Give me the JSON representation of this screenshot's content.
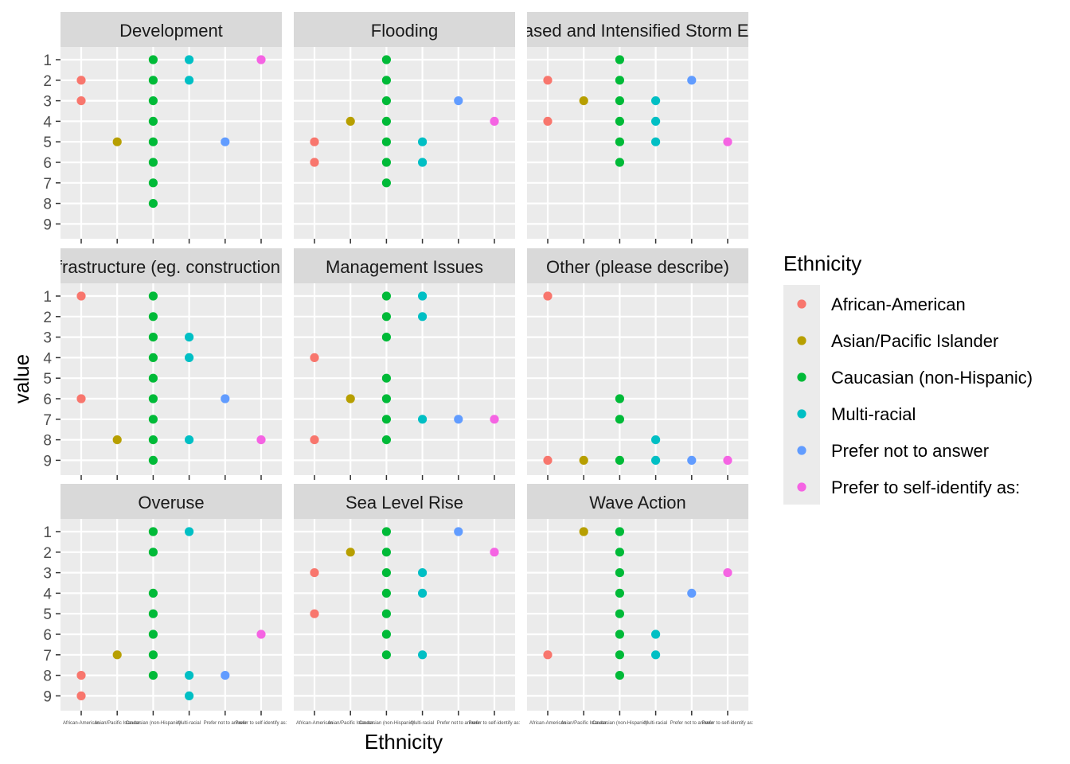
{
  "chart_data": {
    "type": "scatter",
    "facet_layout": "3x3 grid",
    "xlabel": "Ethnicity",
    "ylabel": "value",
    "y_ticks": [
      "1",
      "2",
      "3",
      "4",
      "5",
      "6",
      "7",
      "8",
      "9"
    ],
    "x_categories": [
      "African-American",
      "Asian/Pacific Islander",
      "Caucasian (non-Hispanic)",
      "Multi-racial",
      "Prefer not to answer",
      "Prefer to self-identify as:"
    ],
    "legend": {
      "title": "Ethnicity",
      "placement": "right",
      "entries": [
        {
          "label": "African-American",
          "color": "#F8766D"
        },
        {
          "label": "Asian/Pacific Islander",
          "color": "#B79F00"
        },
        {
          "label": "Caucasian (non-Hispanic)",
          "color": "#00BA38"
        },
        {
          "label": "Multi-racial",
          "color": "#00BFC4"
        },
        {
          "label": "Prefer not to answer",
          "color": "#619CFF"
        },
        {
          "label": "Prefer to self-identify as:",
          "color": "#F564E3"
        }
      ]
    },
    "facets": [
      {
        "title": "Development",
        "points": [
          [
            0,
            2
          ],
          [
            0,
            3
          ],
          [
            1,
            5
          ],
          [
            2,
            1
          ],
          [
            2,
            2
          ],
          [
            2,
            3
          ],
          [
            2,
            4
          ],
          [
            2,
            5
          ],
          [
            2,
            6
          ],
          [
            2,
            7
          ],
          [
            2,
            8
          ],
          [
            3,
            1
          ],
          [
            3,
            2
          ],
          [
            4,
            5
          ],
          [
            5,
            1
          ]
        ]
      },
      {
        "title": "Flooding",
        "points": [
          [
            0,
            5
          ],
          [
            0,
            6
          ],
          [
            1,
            4
          ],
          [
            2,
            1
          ],
          [
            2,
            2
          ],
          [
            2,
            3
          ],
          [
            2,
            4
          ],
          [
            2,
            5
          ],
          [
            2,
            6
          ],
          [
            2,
            7
          ],
          [
            3,
            5
          ],
          [
            3,
            6
          ],
          [
            4,
            3
          ],
          [
            5,
            4
          ]
        ]
      },
      {
        "title": "Increased and Intensified Storm Events",
        "points": [
          [
            0,
            2
          ],
          [
            0,
            4
          ],
          [
            1,
            3
          ],
          [
            2,
            1
          ],
          [
            2,
            2
          ],
          [
            2,
            3
          ],
          [
            2,
            4
          ],
          [
            2,
            5
          ],
          [
            2,
            6
          ],
          [
            3,
            3
          ],
          [
            3,
            4
          ],
          [
            3,
            5
          ],
          [
            4,
            2
          ],
          [
            5,
            5
          ]
        ]
      },
      {
        "title": "Infrastructure (eg. construction of",
        "points": [
          [
            0,
            1
          ],
          [
            0,
            6
          ],
          [
            1,
            8
          ],
          [
            2,
            1
          ],
          [
            2,
            2
          ],
          [
            2,
            3
          ],
          [
            2,
            4
          ],
          [
            2,
            5
          ],
          [
            2,
            6
          ],
          [
            2,
            7
          ],
          [
            2,
            8
          ],
          [
            2,
            9
          ],
          [
            3,
            3
          ],
          [
            3,
            4
          ],
          [
            3,
            8
          ],
          [
            4,
            6
          ],
          [
            5,
            8
          ]
        ]
      },
      {
        "title": "Management Issues",
        "points": [
          [
            0,
            4
          ],
          [
            0,
            8
          ],
          [
            1,
            6
          ],
          [
            2,
            1
          ],
          [
            2,
            2
          ],
          [
            2,
            3
          ],
          [
            2,
            5
          ],
          [
            2,
            6
          ],
          [
            2,
            7
          ],
          [
            2,
            8
          ],
          [
            3,
            1
          ],
          [
            3,
            2
          ],
          [
            3,
            7
          ],
          [
            4,
            7
          ],
          [
            5,
            7
          ]
        ]
      },
      {
        "title": "Other (please describe)",
        "points": [
          [
            0,
            1
          ],
          [
            0,
            9
          ],
          [
            1,
            9
          ],
          [
            2,
            6
          ],
          [
            2,
            7
          ],
          [
            2,
            9
          ],
          [
            3,
            8
          ],
          [
            3,
            9
          ],
          [
            4,
            9
          ],
          [
            5,
            9
          ]
        ]
      },
      {
        "title": "Overuse",
        "points": [
          [
            0,
            8
          ],
          [
            0,
            9
          ],
          [
            1,
            7
          ],
          [
            2,
            1
          ],
          [
            2,
            2
          ],
          [
            2,
            4
          ],
          [
            2,
            5
          ],
          [
            2,
            6
          ],
          [
            2,
            7
          ],
          [
            2,
            8
          ],
          [
            3,
            1
          ],
          [
            3,
            8
          ],
          [
            3,
            9
          ],
          [
            4,
            8
          ],
          [
            5,
            6
          ]
        ]
      },
      {
        "title": "Sea Level Rise",
        "points": [
          [
            0,
            3
          ],
          [
            0,
            5
          ],
          [
            1,
            2
          ],
          [
            2,
            1
          ],
          [
            2,
            2
          ],
          [
            2,
            3
          ],
          [
            2,
            4
          ],
          [
            2,
            5
          ],
          [
            2,
            6
          ],
          [
            2,
            7
          ],
          [
            3,
            3
          ],
          [
            3,
            4
          ],
          [
            3,
            7
          ],
          [
            4,
            1
          ],
          [
            5,
            2
          ]
        ]
      },
      {
        "title": "Wave Action",
        "points": [
          [
            0,
            7
          ],
          [
            1,
            1
          ],
          [
            2,
            1
          ],
          [
            2,
            2
          ],
          [
            2,
            3
          ],
          [
            2,
            4
          ],
          [
            2,
            5
          ],
          [
            2,
            6
          ],
          [
            2,
            7
          ],
          [
            2,
            8
          ],
          [
            3,
            6
          ],
          [
            3,
            7
          ],
          [
            4,
            4
          ],
          [
            5,
            3
          ]
        ]
      }
    ]
  }
}
